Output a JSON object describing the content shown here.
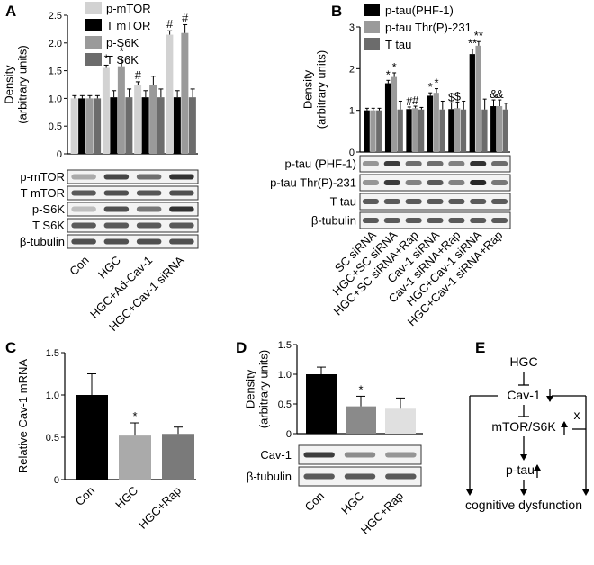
{
  "colors": {
    "black": "#000000",
    "light_gray": "#d2d2d2",
    "mid_gray": "#9a9a9a",
    "dark_gray": "#6c6c6c",
    "pale_gray": "#e0e0e0"
  },
  "chart_data": [
    {
      "panel": "A",
      "type": "bar",
      "ylabel": "Density\n(arbitrary units)",
      "ylim": [
        0,
        2.5
      ],
      "yticks": [
        "0",
        "0.5",
        "1.0",
        "1.5",
        "2.0",
        "2.5"
      ],
      "categories": [
        "Con",
        "HGC",
        "HGC+Ad-Cav-1",
        "HGC+Cav-1 siRNA"
      ],
      "series": [
        {
          "name": "p-mTOR",
          "color": "#d2d2d2",
          "values": [
            1.0,
            1.55,
            1.25,
            2.15
          ],
          "errors": [
            0.05,
            0.05,
            0.05,
            0.07
          ],
          "sig": [
            "",
            "*",
            "#",
            "#"
          ]
        },
        {
          "name": "T mTOR",
          "color": "#000000",
          "values": [
            1.0,
            1.02,
            1.02,
            1.02
          ],
          "errors": [
            0.05,
            0.12,
            0.12,
            0.12
          ],
          "sig": [
            "",
            "",
            "",
            ""
          ]
        },
        {
          "name": "p-S6K",
          "color": "#9a9a9a",
          "values": [
            1.0,
            1.58,
            1.25,
            2.18
          ],
          "errors": [
            0.05,
            0.15,
            0.15,
            0.15
          ],
          "sig": [
            "",
            "*",
            "",
            "#"
          ]
        },
        {
          "name": "T S6K",
          "color": "#6c6c6c",
          "values": [
            1.0,
            1.02,
            1.02,
            1.02
          ],
          "errors": [
            0.05,
            0.15,
            0.15,
            0.15
          ],
          "sig": [
            "",
            "",
            "",
            ""
          ]
        }
      ],
      "blots": [
        "p-mTOR",
        "T mTOR",
        "p-S6K",
        "T S6K",
        "β-tubulin"
      ]
    },
    {
      "panel": "B",
      "type": "bar",
      "ylabel": "Density\n(arbitrary units)",
      "ylim": [
        0,
        3
      ],
      "yticks": [
        "0",
        "1",
        "2",
        "3"
      ],
      "categories": [
        "SC siRNA",
        "HGC+SC siRNA",
        "HGC+SC siRNA+Rap",
        "Cav-1 siRNA",
        "Cav-1 siRNA+Rap",
        "HGC+Cav-1 siRNA",
        "HGC+Cav-1 siRNA+Rap"
      ],
      "series": [
        {
          "name": "p-tau(PHF-1)",
          "color": "#000000",
          "values": [
            1.0,
            1.65,
            1.03,
            1.35,
            1.03,
            2.35,
            1.1
          ],
          "errors": [
            0.05,
            0.07,
            0.05,
            0.07,
            0.15,
            0.12,
            0.15
          ],
          "sig": [
            "",
            "*",
            "#",
            "*",
            "$",
            "**",
            "&"
          ]
        },
        {
          "name": "p-tau Thr(P)-231",
          "color": "#9a9a9a",
          "values": [
            1.0,
            1.8,
            1.05,
            1.42,
            1.05,
            2.55,
            1.1
          ],
          "errors": [
            0.05,
            0.1,
            0.05,
            0.1,
            0.15,
            0.1,
            0.15
          ],
          "sig": [
            "",
            "*",
            "#",
            "*",
            "$",
            "**",
            "&"
          ]
        },
        {
          "name": "T tau",
          "color": "#6c6c6c",
          "values": [
            1.0,
            1.02,
            1.02,
            1.02,
            1.02,
            1.02,
            1.02
          ],
          "errors": [
            0.05,
            0.2,
            0.05,
            0.2,
            0.2,
            0.25,
            0.15
          ],
          "sig": [
            "",
            "",
            "",
            "",
            "",
            "",
            ""
          ]
        }
      ],
      "blots": [
        "p-tau (PHF-1)",
        "p-tau Thr(P)-231",
        "T tau",
        "β-tubulin"
      ]
    },
    {
      "panel": "C",
      "type": "bar",
      "ylabel": "Relative Cav-1 mRNA",
      "ylim": [
        0,
        1.5
      ],
      "yticks": [
        "0",
        "0.5",
        "1.0",
        "1.5"
      ],
      "categories": [
        "Con",
        "HGC",
        "HGC+Rap"
      ],
      "colors": [
        "#000000",
        "#aaaaaa",
        "#7a7a7a"
      ],
      "values": [
        1.0,
        0.52,
        0.54
      ],
      "errors": [
        0.25,
        0.15,
        0.08
      ],
      "sig": [
        "",
        "*",
        ""
      ]
    },
    {
      "panel": "D",
      "type": "bar",
      "ylabel": "Density\n(arbitrary units)",
      "ylim": [
        0,
        1.5
      ],
      "yticks": [
        "0",
        "0.5",
        "1.0",
        "1.5"
      ],
      "categories": [
        "Con",
        "HGC",
        "HGC+Rap"
      ],
      "colors": [
        "#000000",
        "#8a8a8a",
        "#e0e0e0"
      ],
      "values": [
        1.0,
        0.46,
        0.42
      ],
      "errors": [
        0.12,
        0.17,
        0.18
      ],
      "sig": [
        "",
        "*",
        ""
      ],
      "blots": [
        "Cav-1",
        "β-tubulin"
      ]
    }
  ],
  "diagram": {
    "panel": "E",
    "nodes": [
      "HGC",
      "Cav-1",
      "mTOR/S6K",
      "p-tau",
      "cognitive dysfunction"
    ],
    "cross_mark": "x"
  }
}
